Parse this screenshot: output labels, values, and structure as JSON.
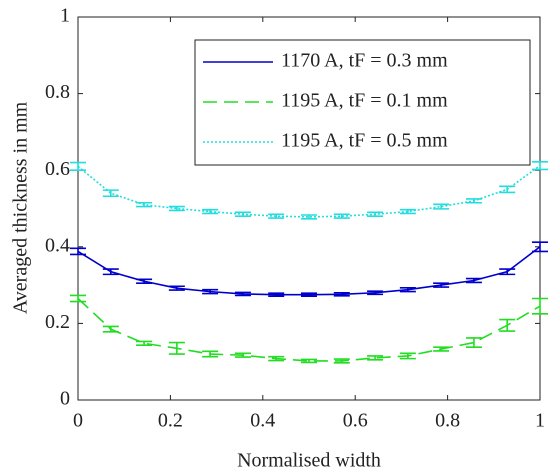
{
  "chart_data": {
    "type": "line",
    "xlabel": "Normalised width",
    "ylabel": "Averaged thickness in mm",
    "x": [
      0,
      0.071,
      0.143,
      0.214,
      0.286,
      0.357,
      0.429,
      0.5,
      0.571,
      0.643,
      0.714,
      0.786,
      0.857,
      0.929,
      1
    ],
    "series": [
      {
        "name": "1170 A, tF = 0.3 mm",
        "color": "#0000cc",
        "dash": "solid",
        "values": [
          0.388,
          0.335,
          0.31,
          0.292,
          0.283,
          0.277,
          0.275,
          0.275,
          0.276,
          0.28,
          0.288,
          0.3,
          0.312,
          0.335,
          0.4
        ],
        "errors": [
          0.008,
          0.007,
          0.005,
          0.005,
          0.005,
          0.004,
          0.004,
          0.004,
          0.004,
          0.004,
          0.005,
          0.005,
          0.005,
          0.007,
          0.012
        ]
      },
      {
        "name": "1195 A, tF = 0.1 mm",
        "color": "#22dd22",
        "dash": "dashed",
        "values": [
          0.265,
          0.185,
          0.148,
          0.135,
          0.12,
          0.117,
          0.108,
          0.102,
          0.102,
          0.11,
          0.115,
          0.133,
          0.15,
          0.195,
          0.245
        ],
        "errors": [
          0.008,
          0.007,
          0.005,
          0.015,
          0.007,
          0.005,
          0.005,
          0.004,
          0.005,
          0.005,
          0.007,
          0.005,
          0.012,
          0.015,
          0.02
        ]
      },
      {
        "name": "1195 A, tF = 0.5 mm",
        "color": "#22dddd",
        "dash": "dotted",
        "values": [
          0.61,
          0.54,
          0.51,
          0.5,
          0.492,
          0.485,
          0.48,
          0.478,
          0.48,
          0.485,
          0.492,
          0.505,
          0.52,
          0.55,
          0.612
        ],
        "errors": [
          0.01,
          0.008,
          0.005,
          0.005,
          0.005,
          0.005,
          0.005,
          0.005,
          0.005,
          0.005,
          0.005,
          0.006,
          0.005,
          0.008,
          0.01
        ]
      }
    ],
    "xlim": [
      0,
      1
    ],
    "ylim": [
      0,
      1
    ],
    "xticks": [
      0,
      0.2,
      0.4,
      0.6,
      0.8,
      1
    ],
    "yticks": [
      0,
      0.2,
      0.4,
      0.6,
      0.8,
      1
    ],
    "grid": false,
    "legend": "upper right"
  }
}
